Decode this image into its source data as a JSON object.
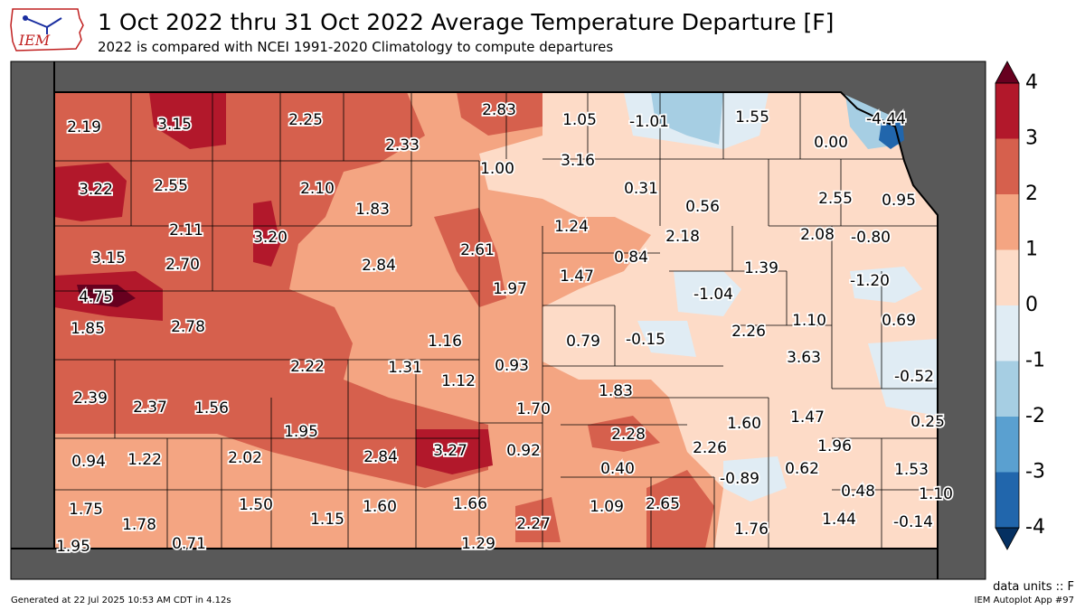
{
  "title": "1 Oct 2022 thru 31 Oct 2022 Average Temperature Departure [F]",
  "subtitle": "2022 is compared with NCEI 1991-2020 Climatology to compute departures",
  "units_note": "data units :: F",
  "generated": "Generated at 22 Jul 2025 10:53 AM CDT in 4.12s",
  "app": "IEM Autoplot App #97",
  "logo_text": "IEM",
  "colorbar": {
    "ticks": [
      "4",
      "3",
      "2",
      "1",
      "0",
      "-1",
      "-2",
      "-3",
      "-4"
    ],
    "colors": [
      "#b2182b",
      "#d6604d",
      "#f4a582",
      "#fddbc7",
      "#e0ecf4",
      "#a6cee3",
      "#5aa0d0",
      "#2166ac"
    ],
    "over_color": "#67001f",
    "under_color": "#053061"
  },
  "colors": {
    "outside_state": "#595959",
    "county_line": "#000000"
  },
  "values": [
    "2.19",
    "3.15",
    "2.25",
    "2.33",
    "2.83",
    "1.05",
    "-1.01",
    "1.55",
    "-4.44",
    "0.00",
    "3.22",
    "2.55",
    "2.10",
    "1.00",
    "3.16",
    "0.31",
    "0.56",
    "2.55",
    "0.95",
    "1.83",
    "2.11",
    "3.20",
    "1.24",
    "2.18",
    "2.08",
    "-0.80",
    "3.15",
    "2.70",
    "2.61",
    "0.84",
    "2.84",
    "1.39",
    "1.97",
    "1.47",
    "-1.04",
    "-1.20",
    "4.75",
    "1.85",
    "2.78",
    "1.10",
    "0.69",
    "1.16",
    "0.79",
    "-0.15",
    "2.26",
    "3.63",
    "2.22",
    "1.31",
    "1.12",
    "0.93",
    "1.83",
    "-0.52",
    "2.39",
    "2.37",
    "1.56",
    "1.70",
    "1.47",
    "1.60",
    "0.25",
    "1.95",
    "2.28",
    "2.26",
    "1.96",
    "0.94",
    "1.22",
    "2.02",
    "2.84",
    "3.27",
    "0.92",
    "0.40",
    "-0.89",
    "0.62",
    "1.53",
    "0.48",
    "1.10",
    "1.75",
    "1.50",
    "1.60",
    "1.66",
    "1.09",
    "2.65",
    "1.78",
    "1.15",
    "2.27",
    "1.76",
    "1.44",
    "-0.14",
    "1.95",
    "0.71",
    "1.29"
  ]
}
